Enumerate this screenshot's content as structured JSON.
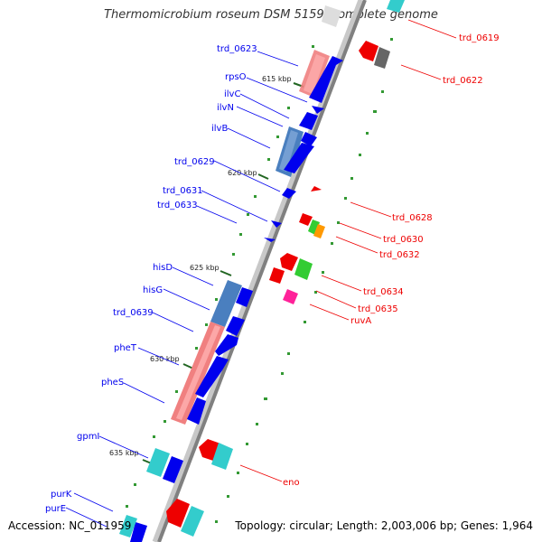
{
  "title": "Thermomicrobium roseum DSM 5159, complete genome",
  "footer": {
    "accession": "Accession: NC_011959",
    "summary": "Topology: circular; Length: 2,003,006 bp; Genes: 1,964"
  },
  "colors": {
    "forward": "#0000ee",
    "reverse": "#ee0000",
    "backbone_dark": "#808080",
    "backbone_light": "#c8c8c8",
    "tick": "#339933"
  },
  "kbp_ticks": [
    {
      "label": "615 kbp"
    },
    {
      "label": "620 kbp"
    },
    {
      "label": "625 kbp"
    },
    {
      "label": "630 kbp"
    },
    {
      "label": "635 kbp"
    }
  ],
  "left_labels": [
    {
      "text": "trd_0623"
    },
    {
      "text": "rpsO"
    },
    {
      "text": "ilvC"
    },
    {
      "text": "ilvN"
    },
    {
      "text": "ilvB"
    },
    {
      "text": "trd_0629"
    },
    {
      "text": "trd_0631"
    },
    {
      "text": "trd_0633"
    },
    {
      "text": "hisD"
    },
    {
      "text": "hisG"
    },
    {
      "text": "trd_0639"
    },
    {
      "text": "pheT"
    },
    {
      "text": "pheS"
    },
    {
      "text": "gpmI"
    },
    {
      "text": "purK"
    },
    {
      "text": "purE"
    }
  ],
  "right_labels": [
    {
      "text": "trd_0619"
    },
    {
      "text": "trd_0622"
    },
    {
      "text": "trd_0628"
    },
    {
      "text": "trd_0630"
    },
    {
      "text": "trd_0632"
    },
    {
      "text": "trd_0634"
    },
    {
      "text": "trd_0635"
    },
    {
      "text": "ruvA"
    },
    {
      "text": "eno"
    }
  ]
}
